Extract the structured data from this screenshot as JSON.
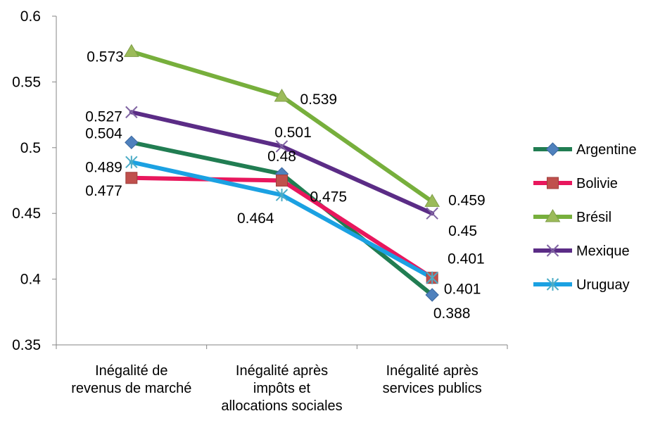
{
  "chart_data": {
    "type": "line",
    "categories": [
      [
        "Inégalité de",
        "revenus de marché"
      ],
      [
        "Inégalité après",
        "impôts et",
        "allocations sociales"
      ],
      [
        "Inégalité après",
        "services publics"
      ]
    ],
    "ylim": [
      0.35,
      0.6
    ],
    "yticks": [
      "0.35",
      "0.4",
      "0.45",
      "0.5",
      "0.55",
      "0.6"
    ],
    "grid": false,
    "legend_position": "right",
    "series": [
      {
        "name": "Argentine",
        "values": [
          0.504,
          0.48,
          0.388
        ],
        "labels": [
          "0.504",
          "0.48",
          "0.388"
        ],
        "color": "#217D52",
        "marker": "diamond",
        "marker_color": "#4F81BD"
      },
      {
        "name": "Bolivie",
        "values": [
          0.477,
          0.475,
          0.401
        ],
        "labels": [
          "0.477",
          "0.475",
          "0.401"
        ],
        "color": "#E8175D",
        "marker": "square",
        "marker_color": "#C0504D"
      },
      {
        "name": "Brésil",
        "values": [
          0.573,
          0.539,
          0.459
        ],
        "labels": [
          "0.573",
          "0.539",
          "0.459"
        ],
        "color": "#77AF3C",
        "marker": "triangle",
        "marker_color": "#9BBB59"
      },
      {
        "name": "Mexique",
        "values": [
          0.527,
          0.501,
          0.45
        ],
        "labels": [
          "0.527",
          "0.501",
          "0.45"
        ],
        "color": "#5B2C86",
        "marker": "x",
        "marker_color": "#8064A2"
      },
      {
        "name": "Uruguay",
        "values": [
          0.489,
          0.464,
          0.401
        ],
        "labels": [
          "0.489",
          "0.464",
          "0.401"
        ],
        "color": "#1BA1E2",
        "marker": "star",
        "marker_color": "#4BACC6"
      }
    ]
  }
}
